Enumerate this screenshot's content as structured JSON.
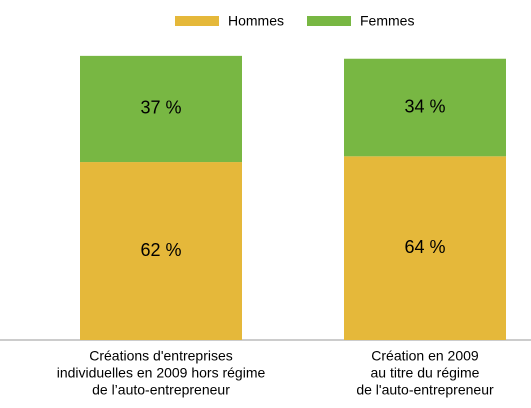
{
  "chart_data": {
    "type": "stacked-bar",
    "categories": [
      [
        "Créations d'entreprises",
        "individuelles en 2009 hors régime",
        "de l’auto-entrepreneur"
      ],
      [
        "Création en 2009",
        "au titre du régime",
        "de l'auto-entrepreneur"
      ]
    ],
    "series": [
      {
        "name": "Hommes",
        "color": "#e5b83a",
        "values": [
          62,
          64
        ],
        "value_labels": [
          "62 %",
          "64 %"
        ]
      },
      {
        "name": "Femmes",
        "color": "#78b743",
        "values": [
          37,
          34
        ],
        "value_labels": [
          "37 %",
          "34 %"
        ]
      }
    ],
    "ylim": [
      0,
      100
    ]
  }
}
